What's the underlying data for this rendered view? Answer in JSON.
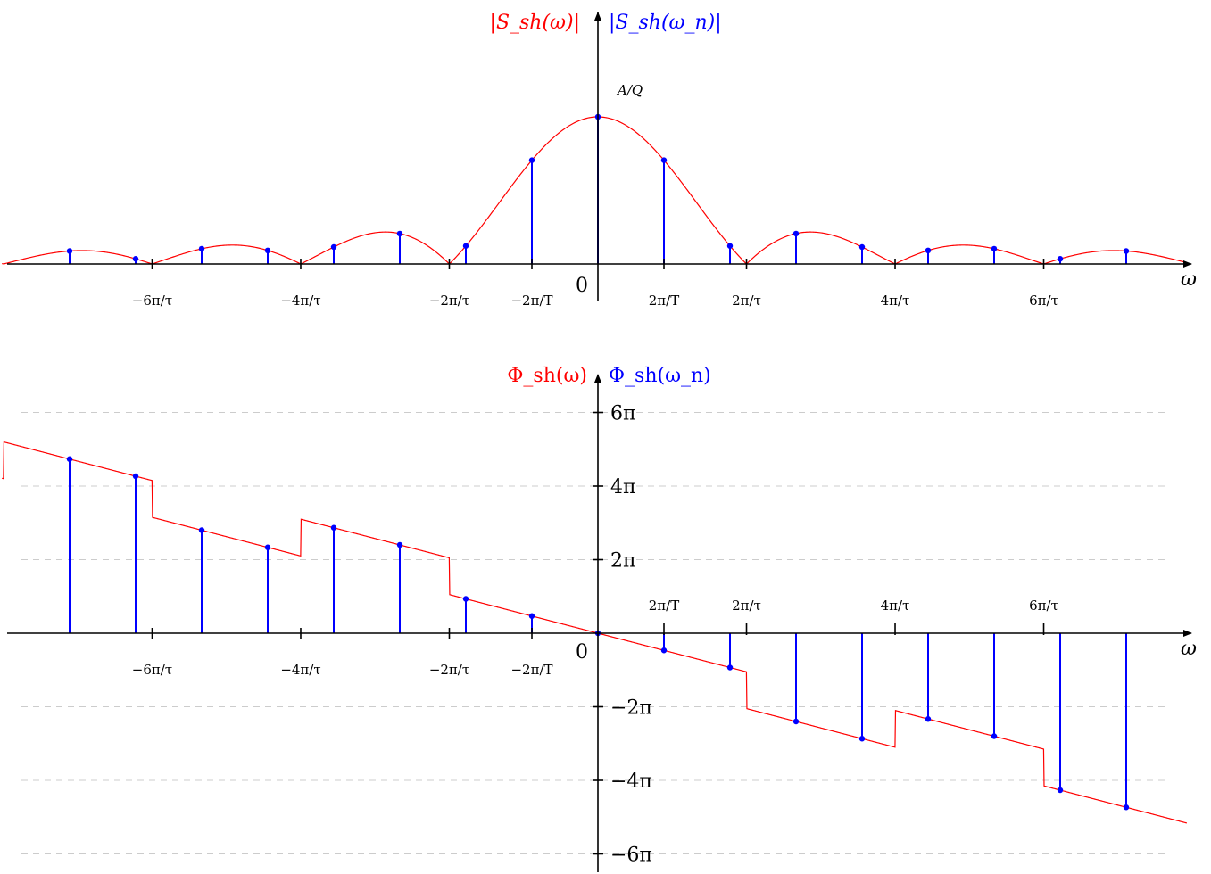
{
  "colors": {
    "continuous": "#ff0000",
    "discrete": "#0000ff",
    "axis": "#000000",
    "grid": "#cccccc"
  },
  "params": {
    "Tr": 0.3
  },
  "top_plot": {
    "title_continuous": "|S_sh(ω)|",
    "title_discrete": "|S_sh(ω_n)|",
    "title_sep": "",
    "peak_label": "A/Q",
    "origin_label": "0",
    "x_axis_label": "ω",
    "x_tick_labels": [
      {
        "x": -6.2832,
        "text": "−6π/τ"
      },
      {
        "x": -4.1888,
        "text": "−4π/τ"
      },
      {
        "x": -2.0944,
        "text": "−2π/τ"
      },
      {
        "x": -0.9308,
        "text": "−2π/T"
      },
      {
        "x": 0.9308,
        "text": "2π/T"
      },
      {
        "x": 2.0944,
        "text": "2π/τ"
      },
      {
        "x": 4.1888,
        "text": "4π/τ"
      },
      {
        "x": 6.2832,
        "text": "6π/τ"
      }
    ],
    "chart_data": {
      "type": "stem",
      "x_range": [
        -8.4,
        8.3
      ],
      "y_peak": 1
    }
  },
  "bottom_plot": {
    "title_continuous": "Φ_sh(ω)",
    "title_discrete": "Φ_sh(ω_n)",
    "origin_label": "0",
    "x_axis_label": "ω",
    "y_tick_labels": [
      {
        "y": 18.8496,
        "text": "6π"
      },
      {
        "y": 12.5664,
        "text": "4π"
      },
      {
        "y": 6.2832,
        "text": "2π"
      },
      {
        "y": -6.2832,
        "text": "−2π"
      },
      {
        "y": -12.5664,
        "text": "−4π"
      },
      {
        "y": -18.8496,
        "text": "−6π"
      }
    ],
    "x_tick_labels_below": [
      {
        "x": -6.2832,
        "text": "−6π/τ"
      },
      {
        "x": -4.1888,
        "text": "−4π/τ"
      },
      {
        "x": -2.0944,
        "text": "−2π/τ"
      },
      {
        "x": -0.9308,
        "text": "−2π/T"
      }
    ],
    "x_tick_labels_above": [
      {
        "x": 0.9308,
        "text": "2π/T"
      },
      {
        "x": 2.0944,
        "text": "2π/τ"
      },
      {
        "x": 4.1888,
        "text": "4π/τ"
      },
      {
        "x": 6.2832,
        "text": "6π/τ"
      }
    ],
    "chart_data": {
      "type": "stem",
      "x_range": [
        -8.4,
        8.3
      ],
      "y_range": [
        -20,
        20
      ],
      "grid": "dashed-horizontal"
    }
  }
}
